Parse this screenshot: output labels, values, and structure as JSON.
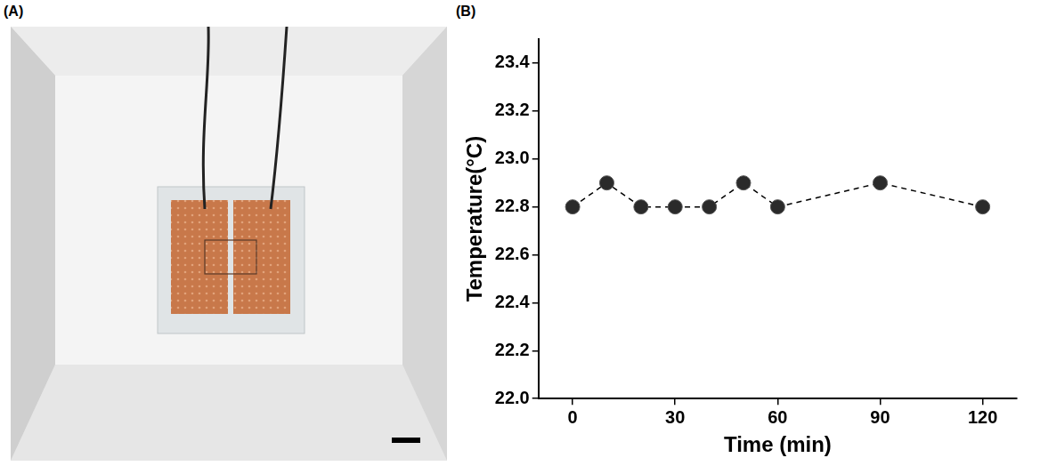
{
  "panel_labels": [
    "(A)",
    "(B)"
  ],
  "chart_data": {
    "type": "line",
    "x_label": "Time (min)",
    "y_label": "Temperature(°C)",
    "x": [
      0,
      10,
      20,
      30,
      40,
      50,
      60,
      90,
      120
    ],
    "values": [
      22.8,
      22.9,
      22.8,
      22.8,
      22.8,
      22.9,
      22.8,
      22.9,
      22.8
    ],
    "color": "#000000",
    "marker": "circle",
    "line_style": "dashed",
    "xlim": [
      -10,
      130
    ],
    "xticks": [
      0,
      30,
      60,
      90,
      120
    ],
    "ylim": [
      22,
      23.5
    ],
    "yticks": [
      {
        "value": 22,
        "label": "22.0"
      },
      22.2,
      22.4,
      22.6,
      22.8,
      {
        "value": 23,
        "label": "23.0"
      },
      23.2,
      23.4
    ],
    "grid": false
  }
}
